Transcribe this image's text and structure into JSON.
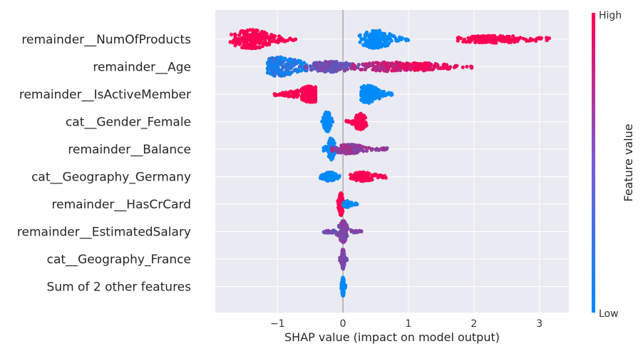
{
  "chart_data": {
    "type": "scatter",
    "subtype": "shap-beeswarm",
    "title": "",
    "xlabel": "SHAP value (impact on model output)",
    "ylabel": "",
    "xlim": [
      -1.95,
      3.45
    ],
    "xticks": [
      -1,
      0,
      1,
      2,
      3
    ],
    "xtick_labels": [
      "−1",
      "0",
      "1",
      "2",
      "3"
    ],
    "grid": true,
    "background": "#eaeaf2",
    "colorbar": {
      "label": "Feature value",
      "high_label": "High",
      "low_label": "Low",
      "low_color": "#008bfb",
      "high_color": "#ff0052"
    },
    "features": [
      {
        "name": "remainder__NumOfProducts",
        "groups": [
          {
            "min": -1.72,
            "max": -0.72,
            "peak": -1.4,
            "spread": 0.28,
            "height": 12,
            "count": 220,
            "value": 1.0
          },
          {
            "min": 0.25,
            "max": 1.0,
            "peak": 0.5,
            "spread": 0.22,
            "height": 11,
            "count": 170,
            "value": 0.0
          },
          {
            "min": 1.7,
            "max": 3.15,
            "peak": 2.3,
            "spread": 0.5,
            "height": 3.5,
            "count": 160,
            "value": 1.0
          }
        ]
      },
      {
        "name": "remainder__Age",
        "groups": [
          {
            "min": -1.15,
            "max": -0.15,
            "peak": -0.95,
            "spread": 0.3,
            "height": 12,
            "count": 220,
            "value": 0.12
          },
          {
            "min": -0.6,
            "max": 0.4,
            "peak": -0.2,
            "spread": 0.3,
            "height": 6,
            "count": 150,
            "value": 0.45
          },
          {
            "min": 0.1,
            "max": 1.3,
            "peak": 0.7,
            "spread": 0.4,
            "height": 5,
            "count": 150,
            "value": 0.75
          },
          {
            "min": 0.9,
            "max": 2.0,
            "peak": 1.2,
            "spread": 0.35,
            "height": 4,
            "count": 130,
            "value": 0.95
          }
        ]
      },
      {
        "name": "remainder__IsActiveMember",
        "groups": [
          {
            "min": -1.05,
            "max": -0.42,
            "peak": -0.5,
            "spread": 0.2,
            "height": 10,
            "count": 190,
            "value": 1.0
          },
          {
            "min": 0.28,
            "max": 0.75,
            "peak": 0.38,
            "spread": 0.15,
            "height": 11,
            "count": 170,
            "value": 0.0
          }
        ]
      },
      {
        "name": "cat__Gender_Female",
        "groups": [
          {
            "min": -0.32,
            "max": -0.15,
            "peak": -0.24,
            "spread": 0.05,
            "height": 13,
            "count": 140,
            "value": 0.0
          },
          {
            "min": 0.05,
            "max": 0.36,
            "peak": 0.26,
            "spread": 0.08,
            "height": 10,
            "count": 130,
            "value": 1.0
          }
        ]
      },
      {
        "name": "remainder__Balance",
        "groups": [
          {
            "min": -0.3,
            "max": -0.08,
            "peak": -0.18,
            "spread": 0.05,
            "height": 14,
            "count": 150,
            "value": 0.0
          },
          {
            "min": -0.2,
            "max": 0.68,
            "peak": 0.1,
            "spread": 0.2,
            "height": 5,
            "count": 180,
            "value": 0.6
          }
        ]
      },
      {
        "name": "cat__Geography_Germany",
        "groups": [
          {
            "min": -0.35,
            "max": -0.05,
            "peak": -0.2,
            "spread": 0.08,
            "height": 5,
            "count": 110,
            "value": 0.0
          },
          {
            "min": 0.1,
            "max": 0.68,
            "peak": 0.3,
            "spread": 0.15,
            "height": 5,
            "count": 140,
            "value": 1.0
          }
        ]
      },
      {
        "name": "remainder__HasCrCard",
        "groups": [
          {
            "min": -0.08,
            "max": 0.05,
            "peak": -0.03,
            "spread": 0.03,
            "height": 14,
            "count": 140,
            "value": 1.0
          },
          {
            "min": 0.0,
            "max": 0.22,
            "peak": 0.06,
            "spread": 0.05,
            "height": 3,
            "count": 60,
            "value": 0.0
          }
        ]
      },
      {
        "name": "remainder__EstimatedSalary",
        "groups": [
          {
            "min": -0.3,
            "max": 0.3,
            "peak": 0.0,
            "spread": 0.06,
            "height": 14,
            "count": 200,
            "value": 0.5
          }
        ]
      },
      {
        "name": "cat__Geography_France",
        "groups": [
          {
            "min": -0.05,
            "max": 0.06,
            "peak": 0.0,
            "spread": 0.02,
            "height": 13,
            "count": 120,
            "value": 0.5
          }
        ]
      },
      {
        "name": "Sum of 2 other features",
        "groups": [
          {
            "min": -0.04,
            "max": 0.04,
            "peak": 0.0,
            "spread": 0.015,
            "height": 12,
            "count": 100,
            "value": 0.0
          }
        ]
      }
    ]
  }
}
